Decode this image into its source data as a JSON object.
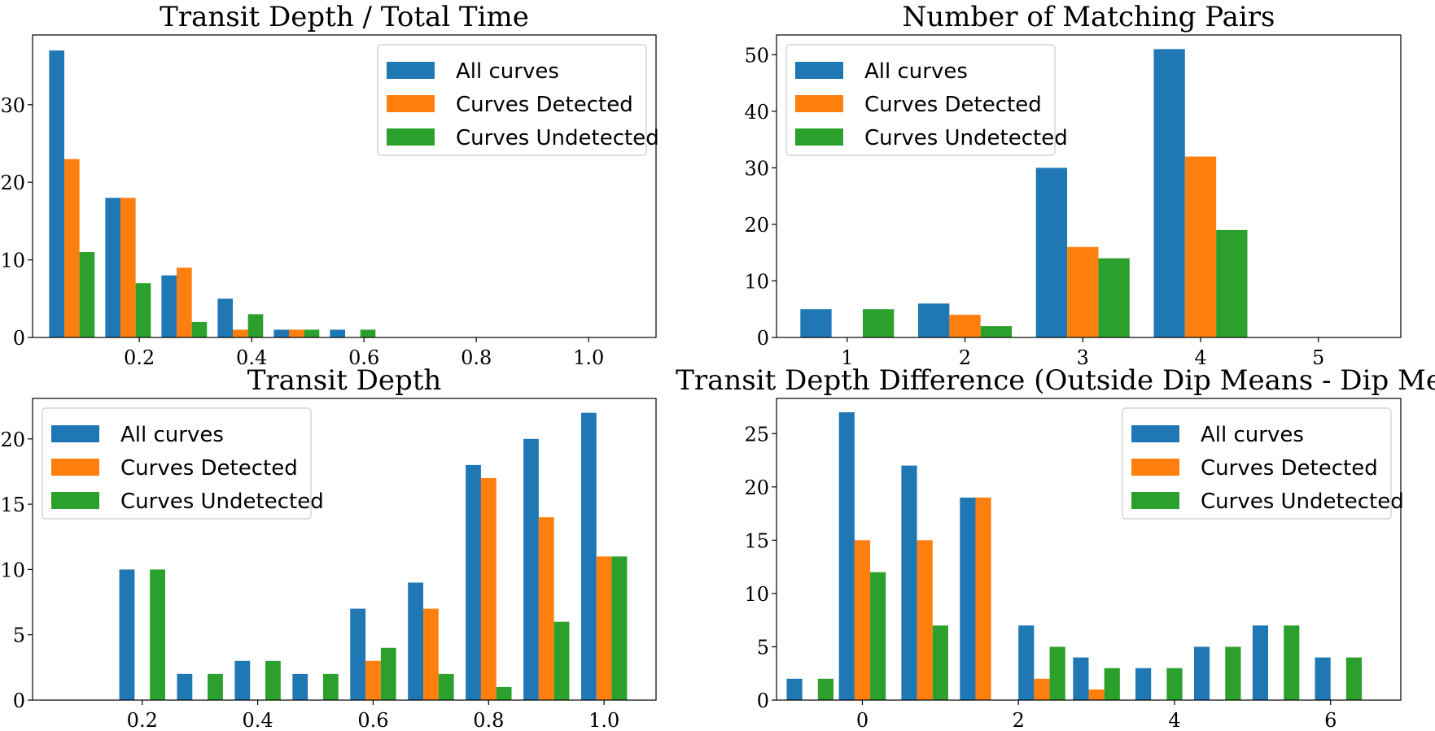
{
  "colors": {
    "All curves": "#1f77b4",
    "Curves Detected": "#ff7f0e",
    "Curves Undetected": "#2ca02c"
  },
  "chart_data": [
    {
      "type": "bar",
      "title": "Transit Depth / Total Time",
      "legend_loc": "top-right",
      "xlim": [
        0.01,
        1.12
      ],
      "ylim": [
        0,
        39
      ],
      "xticks": [
        0.2,
        0.4,
        0.6,
        0.8,
        1.0
      ],
      "xtick_labels": [
        "0.2",
        "0.4",
        "0.6",
        "0.8",
        "1.0"
      ],
      "yticks": [
        0,
        10,
        20,
        30
      ],
      "ytick_labels": [
        "0",
        "10",
        "20",
        "30"
      ],
      "x": [
        0.08,
        0.18,
        0.28,
        0.38,
        0.48,
        0.58
      ],
      "bar_width": 0.027,
      "series": [
        {
          "name": "All curves",
          "values": [
            37,
            18,
            8,
            5,
            1,
            1
          ]
        },
        {
          "name": "Curves Detected",
          "values": [
            23,
            18,
            9,
            1,
            1,
            0
          ]
        },
        {
          "name": "Curves Undetected",
          "values": [
            11,
            7,
            2,
            3,
            1,
            1
          ]
        }
      ]
    },
    {
      "type": "bar",
      "title": "Number of Matching Pairs",
      "legend_loc": "top-left",
      "xlim": [
        0.4,
        5.7
      ],
      "ylim": [
        0,
        53.5
      ],
      "xticks": [
        1,
        2,
        3,
        4,
        5
      ],
      "xtick_labels": [
        "1",
        "2",
        "3",
        "4",
        "5"
      ],
      "yticks": [
        0,
        10,
        20,
        30,
        40,
        50
      ],
      "ytick_labels": [
        "0",
        "10",
        "20",
        "30",
        "40",
        "50"
      ],
      "x": [
        1,
        2,
        3,
        4
      ],
      "bar_width": 0.265,
      "series": [
        {
          "name": "All curves",
          "values": [
            5,
            6,
            30,
            51
          ]
        },
        {
          "name": "Curves Detected",
          "values": [
            0,
            4,
            16,
            32
          ]
        },
        {
          "name": "Curves Undetected",
          "values": [
            5,
            2,
            14,
            19
          ]
        }
      ]
    },
    {
      "type": "bar",
      "title": "Transit Depth",
      "legend_loc": "top-left",
      "xlim": [
        0.01,
        1.09
      ],
      "ylim": [
        0,
        23.1
      ],
      "xticks": [
        0.2,
        0.4,
        0.6,
        0.8,
        1.0
      ],
      "xtick_labels": [
        "0.2",
        "0.4",
        "0.6",
        "0.8",
        "1.0"
      ],
      "yticks": [
        0,
        5,
        10,
        15,
        20
      ],
      "ytick_labels": [
        "0",
        "5",
        "10",
        "15",
        "20"
      ],
      "x": [
        0.2,
        0.3,
        0.4,
        0.5,
        0.6,
        0.7,
        0.8,
        0.9,
        1.0
      ],
      "bar_width": 0.0265,
      "series": [
        {
          "name": "All curves",
          "values": [
            10,
            2,
            3,
            2,
            7,
            9,
            18,
            20,
            22
          ]
        },
        {
          "name": "Curves Detected",
          "values": [
            0,
            0,
            0,
            0,
            3,
            7,
            17,
            14,
            11
          ]
        },
        {
          "name": "Curves Undetected",
          "values": [
            10,
            2,
            3,
            2,
            4,
            2,
            1,
            6,
            11
          ]
        }
      ]
    },
    {
      "type": "bar",
      "title": "Transit Depth Difference (Outside Dip Means - Dip Means)",
      "legend_loc": "top-right",
      "xlim": [
        -1.1,
        6.9
      ],
      "ylim": [
        0,
        28.3
      ],
      "xticks": [
        0,
        2,
        4,
        6
      ],
      "xtick_labels": [
        "0",
        "2",
        "4",
        "6"
      ],
      "yticks": [
        0,
        5,
        10,
        15,
        20,
        25
      ],
      "ytick_labels": [
        "0",
        "5",
        "10",
        "15",
        "20",
        "25"
      ],
      "x": [
        -0.67,
        0.0,
        0.8,
        1.55,
        2.3,
        3.0,
        3.8,
        4.55,
        5.3,
        6.1
      ],
      "bar_width": 0.2,
      "series": [
        {
          "name": "All curves",
          "values": [
            2,
            27,
            22,
            19,
            7,
            4,
            3,
            5,
            7,
            4
          ]
        },
        {
          "name": "Curves Detected",
          "values": [
            0,
            15,
            15,
            19,
            2,
            1,
            0,
            0,
            0,
            0
          ]
        },
        {
          "name": "Curves Undetected",
          "values": [
            2,
            12,
            7,
            0,
            5,
            3,
            3,
            5,
            7,
            4
          ]
        }
      ]
    }
  ]
}
